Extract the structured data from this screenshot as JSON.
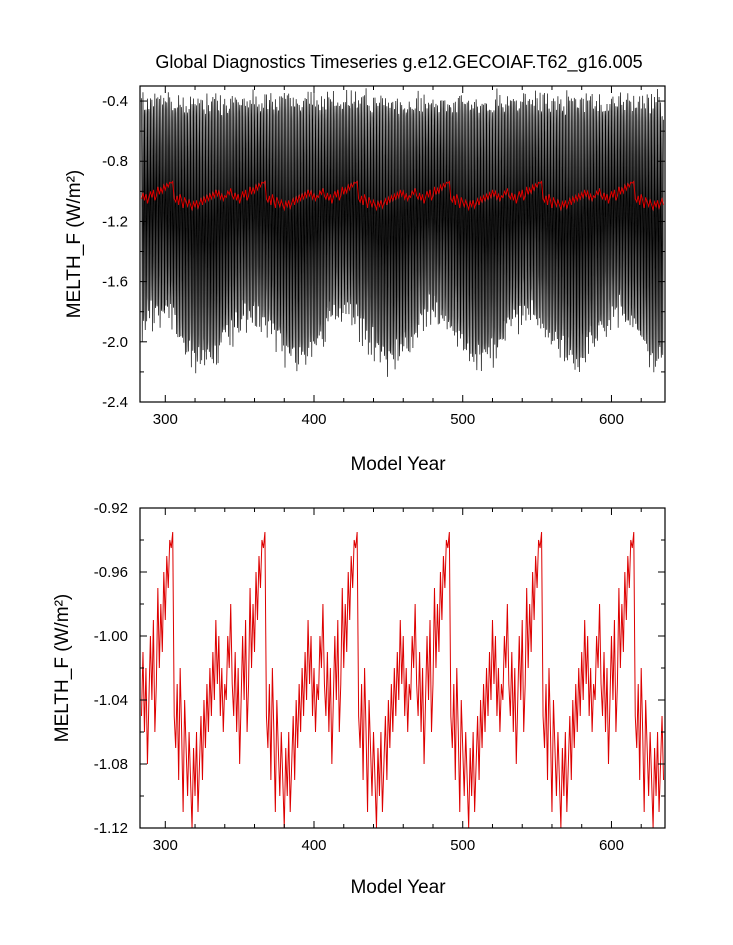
{
  "title": "Global Diagnostics Timeseries g.e12.GECOIAF.T62_g16.005",
  "colors": {
    "raw_series": "#000000",
    "smoothed_series": "#dd0000",
    "background": "#ffffff"
  },
  "chart_data": [
    {
      "type": "line",
      "title": "Global Diagnostics Timeseries g.e12.GECOIAF.T62_g16.005",
      "xlabel": "Model Year",
      "ylabel": "MELTH_F (W/m²)",
      "xlim": [
        283,
        636
      ],
      "ylim": [
        -2.4,
        -0.3
      ],
      "xticks": [
        300,
        400,
        500,
        600
      ],
      "xtick_labels": [
        "300",
        "400",
        "500",
        "600"
      ],
      "yticks": [
        -0.4,
        -0.8,
        -1.2,
        -1.6,
        -2.0,
        -2.4
      ],
      "ytick_labels": [
        "-0.4",
        "-0.8",
        "-1.2",
        "-1.6",
        "-2.0",
        "-2.4"
      ],
      "grid": false,
      "legend": "none",
      "forcing_cycle_years": 62,
      "series": [
        {
          "role": "monthly",
          "color": "#000000",
          "x_start": 284,
          "x_end": 635,
          "samples_per_year": 12,
          "max_range": [
            -0.37,
            -0.45
          ],
          "min_range_low_phase": [
            -1.7,
            -1.9
          ],
          "min_range_high_phase": [
            -2.0,
            -2.2
          ]
        },
        {
          "role": "annual_mean",
          "color": "#dd0000",
          "x_start": 284,
          "x_end": 635,
          "y_range": [
            -1.12,
            -0.92
          ]
        }
      ]
    },
    {
      "type": "line",
      "xlabel": "Model Year",
      "ylabel": "MELTH_F (W/m²)",
      "xlim": [
        283,
        636
      ],
      "ylim": [
        -1.12,
        -0.92
      ],
      "xticks": [
        300,
        400,
        500,
        600
      ],
      "xtick_labels": [
        "300",
        "400",
        "500",
        "600"
      ],
      "yticks": [
        -0.92,
        -0.96,
        -1.0,
        -1.04,
        -1.08,
        -1.12
      ],
      "ytick_labels": [
        "-0.92",
        "-0.96",
        "-1.00",
        "-1.04",
        "-1.08",
        "-1.12"
      ],
      "grid": false,
      "legend": "none",
      "forcing_cycle_years": 62,
      "series": [
        {
          "role": "annual_mean",
          "color": "#dd0000",
          "x_start": 284,
          "x_end": 635,
          "cycle_peak_years": [
            307,
            369,
            431,
            493,
            555,
            617
          ],
          "cycle_peak_value": -0.921,
          "cycle_min_value": -1.12,
          "cycle_profile": [
            [
              0,
              -1.05
            ],
            [
              1,
              -1.07
            ],
            [
              2,
              -1.03
            ],
            [
              3,
              -1.09
            ],
            [
              4,
              -1.02
            ],
            [
              5,
              -1.06
            ],
            [
              6,
              -1.11
            ],
            [
              7,
              -1.04
            ],
            [
              8,
              -1.07
            ],
            [
              9,
              -1.1
            ],
            [
              10,
              -1.06
            ],
            [
              11,
              -1.09
            ],
            [
              12,
              -1.12
            ],
            [
              13,
              -1.07
            ],
            [
              14,
              -1.1
            ],
            [
              15,
              -1.06
            ],
            [
              16,
              -1.11
            ],
            [
              17,
              -1.08
            ],
            [
              18,
              -1.05
            ],
            [
              19,
              -1.09
            ],
            [
              20,
              -1.04
            ],
            [
              21,
              -1.07
            ],
            [
              22,
              -1.03
            ],
            [
              23,
              -1.06
            ],
            [
              24,
              -1.02
            ],
            [
              25,
              -1.05
            ],
            [
              26,
              -1.01
            ],
            [
              27,
              -1.04
            ],
            [
              28,
              -0.99
            ],
            [
              29,
              -1.03
            ],
            [
              30,
              -1.0
            ],
            [
              31,
              -1.05
            ],
            [
              32,
              -1.02
            ],
            [
              33,
              -1.06
            ],
            [
              34,
              -1.03
            ],
            [
              35,
              -1.04
            ],
            [
              36,
              -1.0
            ],
            [
              37,
              -1.02
            ],
            [
              38,
              -0.98
            ],
            [
              39,
              -1.03
            ],
            [
              40,
              -1.05
            ],
            [
              41,
              -1.01
            ],
            [
              42,
              -1.06
            ],
            [
              43,
              -1.02
            ],
            [
              44,
              -1.08
            ],
            [
              45,
              -1.04
            ],
            [
              46,
              -1.0
            ],
            [
              47,
              -1.04
            ],
            [
              48,
              -0.99
            ],
            [
              49,
              -1.06
            ],
            [
              50,
              -1.03
            ],
            [
              51,
              -0.97
            ],
            [
              52,
              -1.02
            ],
            [
              53,
              -0.98
            ],
            [
              54,
              -1.01
            ],
            [
              55,
              -0.96
            ],
            [
              56,
              -0.99
            ],
            [
              57,
              -0.95
            ],
            [
              58,
              -0.97
            ],
            [
              59,
              -0.94
            ],
            [
              60,
              -0.945
            ],
            [
              61,
              -0.935
            ],
            [
              62,
              -0.93
            ],
            [
              63,
              -0.921
            ],
            [
              64,
              -0.975
            ],
            [
              65,
              -0.965
            ]
          ]
        }
      ]
    }
  ]
}
